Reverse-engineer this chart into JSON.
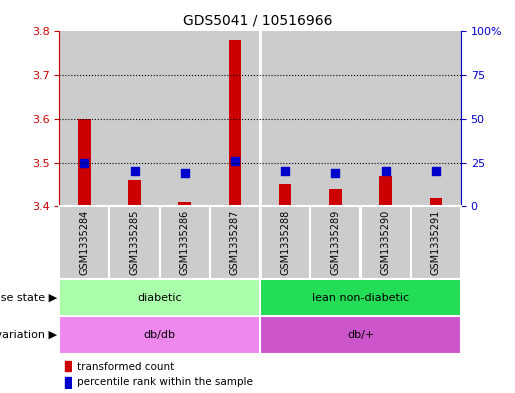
{
  "title": "GDS5041 / 10516966",
  "samples": [
    "GSM1335284",
    "GSM1335285",
    "GSM1335286",
    "GSM1335287",
    "GSM1335288",
    "GSM1335289",
    "GSM1335290",
    "GSM1335291"
  ],
  "transformed_count": [
    3.6,
    3.46,
    3.41,
    3.78,
    3.45,
    3.44,
    3.47,
    3.42
  ],
  "percentile_rank": [
    25,
    20,
    19,
    26,
    20,
    19,
    20,
    20
  ],
  "ylim_left": [
    3.4,
    3.8
  ],
  "ylim_right": [
    0,
    100
  ],
  "yticks_left": [
    3.4,
    3.5,
    3.6,
    3.7,
    3.8
  ],
  "yticks_right": [
    0,
    25,
    50,
    75,
    100
  ],
  "disease_state": [
    {
      "label": "diabetic",
      "start": 0,
      "end": 4,
      "color": "#AAFFAA"
    },
    {
      "label": "lean non-diabetic",
      "start": 4,
      "end": 8,
      "color": "#22DD55"
    }
  ],
  "genotype": [
    {
      "label": "db/db",
      "start": 0,
      "end": 4,
      "color": "#EE88EE"
    },
    {
      "label": "db/+",
      "start": 4,
      "end": 8,
      "color": "#CC55CC"
    }
  ],
  "bar_color_red": "#CC0000",
  "bar_color_blue": "#0000CC",
  "axis_color_left": "#CC0000",
  "axis_color_right": "#0000CC",
  "grid_color": "#000000",
  "col_bg_color": "#CCCCCC",
  "col_sep_color": "#FFFFFF",
  "legend_red_label": "transformed count",
  "legend_blue_label": "percentile rank within the sample",
  "bar_width": 0.25,
  "blue_square_size": 35,
  "disease_label_fontsize": 8,
  "geno_label_fontsize": 8,
  "row_label_fontsize": 8,
  "sample_fontsize": 7,
  "title_fontsize": 10,
  "legend_fontsize": 7.5
}
